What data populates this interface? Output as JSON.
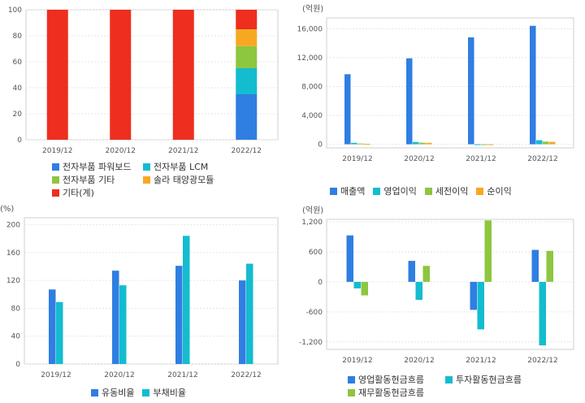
{
  "charts": {
    "product_mix": {
      "type": "bar",
      "stacked": true,
      "categories": [
        "2019/12",
        "2020/12",
        "2021/12",
        "2022/12"
      ],
      "ylim": [
        0,
        100
      ],
      "yticks": [
        "0",
        "20",
        "40",
        "60",
        "80",
        "100"
      ],
      "series": [
        {
          "name": "전자부품 파워보드",
          "color": "#2f7ee2",
          "values": [
            0,
            0,
            0,
            35
          ]
        },
        {
          "name": "전자부품 LCM",
          "color": "#13bccf",
          "values": [
            0,
            0,
            0,
            20
          ]
        },
        {
          "name": "전자부품 기타",
          "color": "#8dc63f",
          "values": [
            0,
            0,
            0,
            17
          ]
        },
        {
          "name": "솔라 태양광모듈",
          "color": "#f7a823",
          "values": [
            0,
            0,
            0,
            13
          ]
        },
        {
          "name": "기타(계)",
          "color": "#ee2e1e",
          "values": [
            100,
            100,
            100,
            15
          ]
        }
      ]
    },
    "income": {
      "type": "bar",
      "unit": "(억원)",
      "categories": [
        "2019/12",
        "2020/12",
        "2021/12",
        "2022/12"
      ],
      "ylim": [
        -500,
        17500
      ],
      "yticks": [
        {
          "v": 0,
          "label": "0"
        },
        {
          "v": 4000,
          "label": "4,000"
        },
        {
          "v": 8000,
          "label": "8,000"
        },
        {
          "v": 12000,
          "label": "12,000"
        },
        {
          "v": 16000,
          "label": "16,000"
        }
      ],
      "series": [
        {
          "name": "매출액",
          "color": "#2f7ee2",
          "values": [
            9700,
            11900,
            14800,
            16400
          ]
        },
        {
          "name": "영업이익",
          "color": "#13bccf",
          "values": [
            200,
            320,
            -60,
            560
          ]
        },
        {
          "name": "세전이익",
          "color": "#8dc63f",
          "values": [
            100,
            220,
            -80,
            370
          ]
        },
        {
          "name": "순이익",
          "color": "#f7a823",
          "values": [
            60,
            200,
            -90,
            330
          ]
        }
      ]
    },
    "ratios": {
      "type": "bar",
      "unit": "(%)",
      "categories": [
        "2019/12",
        "2020/12",
        "2021/12",
        "2022/12"
      ],
      "ylim": [
        0,
        210
      ],
      "yticks": [
        {
          "v": 0,
          "label": "0"
        },
        {
          "v": 40,
          "label": "40"
        },
        {
          "v": 80,
          "label": "80"
        },
        {
          "v": 120,
          "label": "120"
        },
        {
          "v": 160,
          "label": "160"
        },
        {
          "v": 200,
          "label": "200"
        }
      ],
      "series": [
        {
          "name": "유동비율",
          "color": "#2f7ee2",
          "values": [
            107,
            134,
            141,
            120
          ]
        },
        {
          "name": "부채비율",
          "color": "#13bccf",
          "values": [
            89,
            113,
            184,
            144
          ]
        }
      ]
    },
    "cashflow": {
      "type": "bar",
      "unit": "(억원)",
      "categories": [
        "2019/12",
        "2020/12",
        "2021/12",
        "2022/12"
      ],
      "ylim": [
        -1350,
        1250
      ],
      "yticks": [
        {
          "v": -1200,
          "label": "-1,200"
        },
        {
          "v": -600,
          "label": "-600"
        },
        {
          "v": 0,
          "label": "0"
        },
        {
          "v": 600,
          "label": "600"
        },
        {
          "v": 1200,
          "label": "1,200"
        }
      ],
      "series": [
        {
          "name": "영업활동현금흐름",
          "color": "#2f7ee2",
          "values": [
            930,
            420,
            -560,
            640
          ]
        },
        {
          "name": "투자활동현금흐름",
          "color": "#13bccf",
          "values": [
            -130,
            -360,
            -950,
            -1270
          ]
        },
        {
          "name": "재무활동현금흐름",
          "color": "#8dc63f",
          "values": [
            -270,
            320,
            1230,
            620
          ]
        }
      ]
    }
  }
}
